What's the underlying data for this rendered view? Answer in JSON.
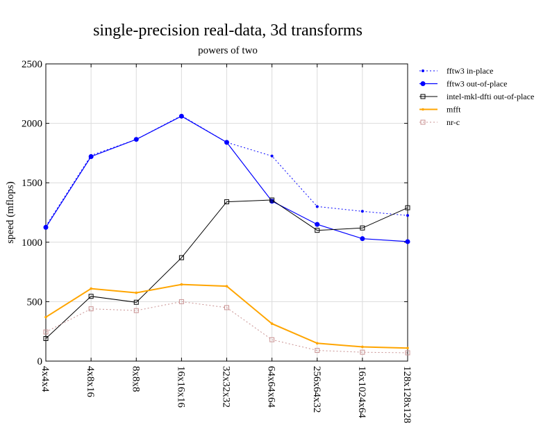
{
  "chart_data": {
    "type": "line",
    "title": "single-precision real-data, 3d transforms",
    "subtitle": "powers of two",
    "xlabel": "",
    "ylabel": "speed (mflops)",
    "ylim": [
      0,
      2500
    ],
    "yticks": [
      0,
      500,
      1000,
      1500,
      2000,
      2500
    ],
    "grid": true,
    "legend_position": "right, outside plot",
    "categories": [
      "4x4x4",
      "4x8x16",
      "8x8x8",
      "16x16x16",
      "32x32x32",
      "64x64x64",
      "256x64x32",
      "16x1024x64",
      "128x128x128"
    ],
    "series": [
      {
        "name": "fftw3 in-place",
        "color": "#0000ff",
        "dash": "2,3",
        "marker": "dot",
        "width": 1,
        "values": [
          1135,
          1730,
          1865,
          2065,
          1840,
          1725,
          1300,
          1260,
          1225
        ]
      },
      {
        "name": "fftw3 out-of-place",
        "color": "#0000ff",
        "dash": "",
        "marker": "bigdot",
        "width": 1.2,
        "values": [
          1125,
          1720,
          1865,
          2060,
          1840,
          1345,
          1150,
          1030,
          1005
        ]
      },
      {
        "name": "intel-mkl-dfti out-of-place",
        "color": "#000000",
        "dash": "",
        "marker": "square",
        "width": 1,
        "values": [
          190,
          545,
          495,
          870,
          1340,
          1355,
          1100,
          1120,
          1290
        ]
      },
      {
        "name": "mfft",
        "color": "#ffa500",
        "dash": "",
        "marker": "smalldot",
        "width": 2,
        "values": [
          370,
          610,
          575,
          645,
          630,
          315,
          150,
          120,
          110
        ]
      },
      {
        "name": "nr-c",
        "color": "#c89090",
        "dash": "2,3",
        "marker": "square",
        "width": 1,
        "values": [
          245,
          440,
          425,
          500,
          450,
          180,
          90,
          75,
          70
        ]
      }
    ]
  }
}
